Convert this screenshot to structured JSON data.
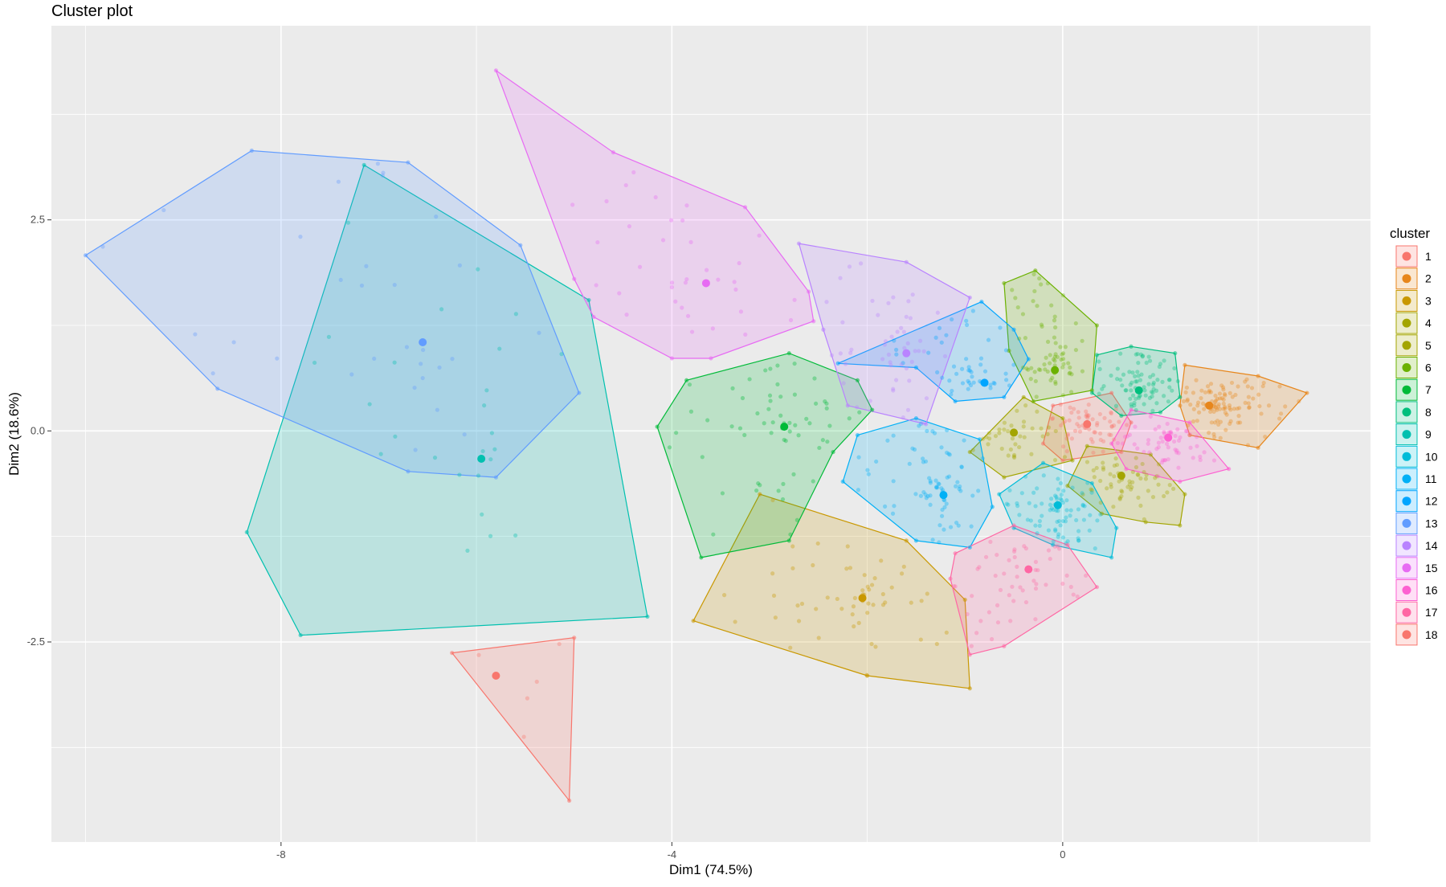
{
  "chart_data": {
    "type": "scatter",
    "title": "Cluster plot",
    "xlabel": "Dim1 (74.5%)",
    "ylabel": "Dim2 (18.6%)",
    "xlim": [
      -10.35,
      3.15
    ],
    "ylim": [
      -4.87,
      4.8
    ],
    "x_ticks": [
      -8,
      -4,
      0
    ],
    "y_ticks": [
      -2.5,
      0.0,
      2.5
    ],
    "x_tick_labels": [
      "-8",
      "-4",
      "0"
    ],
    "y_tick_labels": [
      "-2.5",
      "0.0",
      "2.5"
    ],
    "grid": true,
    "legend": {
      "title": "cluster",
      "position": "right"
    },
    "series": [
      {
        "name": "1",
        "color": "#F8766D",
        "center": [
          0.25,
          0.08
        ],
        "hull": [
          [
            -0.1,
            0.3
          ],
          [
            0.5,
            0.45
          ],
          [
            0.7,
            0.1
          ],
          [
            0.6,
            -0.25
          ],
          [
            0.0,
            -0.35
          ],
          [
            -0.2,
            -0.15
          ]
        ],
        "n_points": 60
      },
      {
        "name": "2",
        "color": "#E7861B",
        "center": [
          1.5,
          0.3
        ],
        "hull": [
          [
            1.25,
            0.78
          ],
          [
            2.0,
            0.65
          ],
          [
            2.5,
            0.45
          ],
          [
            2.0,
            -0.2
          ],
          [
            1.3,
            -0.05
          ],
          [
            1.2,
            0.3
          ]
        ],
        "n_points": 110
      },
      {
        "name": "3",
        "color": "#C99800",
        "center": [
          -2.05,
          -1.98
        ],
        "hull": [
          [
            -3.1,
            -0.75
          ],
          [
            -1.6,
            -1.3
          ],
          [
            -1.0,
            -2.0
          ],
          [
            -0.95,
            -3.05
          ],
          [
            -2.0,
            -2.9
          ],
          [
            -3.78,
            -2.25
          ]
        ],
        "n_points": 55
      },
      {
        "name": "4",
        "color": "#A3A500",
        "center": [
          -0.5,
          -0.02
        ],
        "hull": [
          [
            -0.4,
            0.4
          ],
          [
            0.0,
            0.15
          ],
          [
            0.1,
            -0.35
          ],
          [
            -0.6,
            -0.55
          ],
          [
            -0.95,
            -0.25
          ]
        ],
        "n_points": 40
      },
      {
        "name": "5",
        "color": "#A3A500",
        "center": [
          0.6,
          -0.53
        ],
        "hull": [
          [
            0.25,
            -0.18
          ],
          [
            0.9,
            -0.28
          ],
          [
            1.25,
            -0.75
          ],
          [
            1.2,
            -1.12
          ],
          [
            0.85,
            -1.08
          ],
          [
            0.4,
            -0.98
          ],
          [
            0.05,
            -0.65
          ]
        ],
        "n_points": 60
      },
      {
        "name": "6",
        "color": "#6BB100",
        "center": [
          -0.08,
          0.72
        ],
        "hull": [
          [
            -0.6,
            1.75
          ],
          [
            -0.28,
            1.9
          ],
          [
            0.35,
            1.25
          ],
          [
            0.3,
            0.48
          ],
          [
            -0.3,
            0.35
          ],
          [
            -0.55,
            0.95
          ]
        ],
        "n_points": 70
      },
      {
        "name": "7",
        "color": "#00BA38",
        "center": [
          -2.85,
          0.05
        ],
        "hull": [
          [
            -3.85,
            0.6
          ],
          [
            -2.8,
            0.92
          ],
          [
            -2.1,
            0.6
          ],
          [
            -1.95,
            0.25
          ],
          [
            -2.35,
            -0.25
          ],
          [
            -2.8,
            -1.3
          ],
          [
            -3.7,
            -1.5
          ],
          [
            -4.15,
            0.05
          ]
        ],
        "n_points": 60
      },
      {
        "name": "8",
        "color": "#00BF7D",
        "center": [
          0.78,
          0.48
        ],
        "hull": [
          [
            0.35,
            0.9
          ],
          [
            0.7,
            1.0
          ],
          [
            1.15,
            0.92
          ],
          [
            1.2,
            0.4
          ],
          [
            1.0,
            0.22
          ],
          [
            0.6,
            0.18
          ],
          [
            0.3,
            0.45
          ]
        ],
        "n_points": 80
      },
      {
        "name": "9",
        "color": "#00C0AF",
        "center": [
          -5.95,
          -0.33
        ],
        "hull": [
          [
            -7.15,
            3.15
          ],
          [
            -4.85,
            1.55
          ],
          [
            -4.25,
            -2.2
          ],
          [
            -7.8,
            -2.42
          ],
          [
            -8.35,
            -1.2
          ]
        ],
        "n_points": 25
      },
      {
        "name": "10",
        "color": "#00BCD8",
        "center": [
          -0.05,
          -0.88
        ],
        "hull": [
          [
            -0.2,
            -0.38
          ],
          [
            0.3,
            -0.62
          ],
          [
            0.55,
            -1.15
          ],
          [
            0.5,
            -1.5
          ],
          [
            -0.1,
            -1.35
          ],
          [
            -0.5,
            -1.15
          ],
          [
            -0.65,
            -0.75
          ]
        ],
        "n_points": 80
      },
      {
        "name": "11",
        "color": "#00B0F6",
        "center": [
          -1.22,
          -0.76
        ],
        "hull": [
          [
            -2.1,
            -0.05
          ],
          [
            -1.5,
            0.15
          ],
          [
            -0.85,
            -0.1
          ],
          [
            -0.72,
            -0.9
          ],
          [
            -0.95,
            -1.38
          ],
          [
            -1.5,
            -1.3
          ],
          [
            -2.25,
            -0.6
          ]
        ],
        "n_points": 75
      },
      {
        "name": "12",
        "color": "#00A5FF",
        "center": [
          -0.8,
          0.57
        ],
        "hull": [
          [
            -0.83,
            1.53
          ],
          [
            -0.5,
            1.2
          ],
          [
            -0.35,
            0.85
          ],
          [
            -0.6,
            0.4
          ],
          [
            -1.1,
            0.35
          ],
          [
            -1.5,
            0.75
          ],
          [
            -2.3,
            0.8
          ]
        ],
        "n_points": 50
      },
      {
        "name": "13",
        "color": "#619CFF",
        "center": [
          -6.55,
          1.05
        ],
        "hull": [
          [
            -10.0,
            2.08
          ],
          [
            -8.3,
            3.32
          ],
          [
            -6.7,
            3.18
          ],
          [
            -5.55,
            2.2
          ],
          [
            -4.95,
            0.45
          ],
          [
            -5.8,
            -0.55
          ],
          [
            -6.7,
            -0.48
          ],
          [
            -8.65,
            0.5
          ]
        ],
        "n_points": 30
      },
      {
        "name": "14",
        "color": "#B983FF",
        "center": [
          -1.6,
          0.92
        ],
        "hull": [
          [
            -2.7,
            2.22
          ],
          [
            -1.6,
            2.0
          ],
          [
            -0.95,
            1.58
          ],
          [
            -1.4,
            0.08
          ],
          [
            -2.2,
            0.3
          ],
          [
            -2.45,
            1.2
          ]
        ],
        "n_points": 50
      },
      {
        "name": "15",
        "color": "#E76BF3",
        "center": [
          -3.65,
          1.75
        ],
        "hull": [
          [
            -5.8,
            4.27
          ],
          [
            -4.6,
            3.3
          ],
          [
            -3.25,
            2.65
          ],
          [
            -2.6,
            1.65
          ],
          [
            -2.55,
            1.3
          ],
          [
            -3.6,
            0.86
          ],
          [
            -4.0,
            0.86
          ],
          [
            -4.8,
            1.35
          ],
          [
            -5.0,
            1.8
          ]
        ],
        "n_points": 35
      },
      {
        "name": "16",
        "color": "#FD61D1",
        "center": [
          1.08,
          -0.08
        ],
        "hull": [
          [
            0.7,
            0.25
          ],
          [
            1.3,
            0.1
          ],
          [
            1.7,
            -0.45
          ],
          [
            1.2,
            -0.6
          ],
          [
            0.65,
            -0.45
          ],
          [
            0.5,
            -0.15
          ]
        ],
        "n_points": 60
      },
      {
        "name": "17",
        "color": "#FF67A4",
        "center": [
          -0.35,
          -1.64
        ],
        "hull": [
          [
            -1.1,
            -1.45
          ],
          [
            -0.5,
            -1.12
          ],
          [
            0.05,
            -1.35
          ],
          [
            0.35,
            -1.85
          ],
          [
            -0.6,
            -2.55
          ],
          [
            -0.95,
            -2.65
          ],
          [
            -1.15,
            -1.75
          ]
        ],
        "n_points": 55
      },
      {
        "name": "18",
        "color": "#F8766D",
        "center": [
          -5.8,
          -2.9
        ],
        "hull": [
          [
            -6.25,
            -2.63
          ],
          [
            -5.0,
            -2.45
          ],
          [
            -5.05,
            -4.38
          ]
        ],
        "n_points": 5
      }
    ]
  }
}
